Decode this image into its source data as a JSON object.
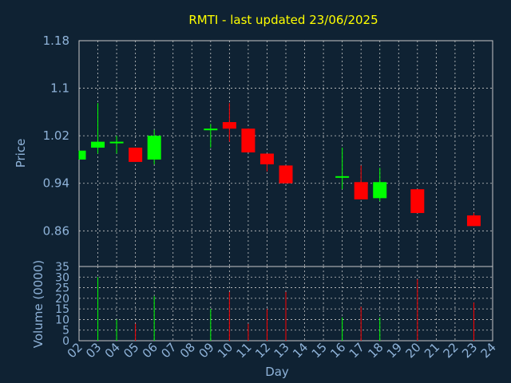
{
  "chart_data": {
    "type": "candlestick",
    "title": "RMTI - last updated 23/06/2025",
    "x_axis_label": "Day",
    "price_axis_label": "Price",
    "volume_axis_label": "Volume (0000)",
    "x_ticks": [
      "02",
      "03",
      "04",
      "05",
      "06",
      "07",
      "08",
      "09",
      "10",
      "11",
      "12",
      "13",
      "14",
      "15",
      "16",
      "17",
      "18",
      "19",
      "20",
      "21",
      "22",
      "23",
      "24"
    ],
    "price_ticks": [
      "1.18",
      "1.1",
      "1.02",
      "0.94",
      "0.86"
    ],
    "price_ylim": [
      0.8,
      1.18
    ],
    "volume_ticks": [
      "35",
      "30",
      "25",
      "20",
      "15",
      "10",
      "5",
      "0"
    ],
    "volume_ylim": [
      0,
      35
    ],
    "colors": {
      "up": "#00ff00",
      "down": "#ff0000",
      "background": "#0f2233",
      "grid": "#c8c8c8",
      "title": "#ffff00",
      "labels": "#8fb3d9"
    },
    "candles": [
      {
        "day": "02",
        "open": 0.98,
        "close": 0.995,
        "high": 0.995,
        "low": 0.98,
        "volume": 0
      },
      {
        "day": "03",
        "open": 1.0,
        "close": 1.01,
        "high": 1.075,
        "low": 0.99,
        "volume": 30
      },
      {
        "day": "04",
        "open": 1.008,
        "close": 1.01,
        "high": 1.02,
        "low": 0.99,
        "volume": 10
      },
      {
        "day": "05",
        "open": 1.0,
        "close": 0.976,
        "high": 1.0,
        "low": 0.976,
        "volume": 8
      },
      {
        "day": "06",
        "open": 0.98,
        "close": 1.02,
        "high": 1.03,
        "low": 0.972,
        "volume": 21
      },
      {
        "day": "09",
        "open": 1.03,
        "close": 1.032,
        "high": 1.04,
        "low": 1.0,
        "volume": 15
      },
      {
        "day": "10",
        "open": 1.043,
        "close": 1.032,
        "high": 1.075,
        "low": 1.01,
        "volume": 23
      },
      {
        "day": "11",
        "open": 1.032,
        "close": 0.992,
        "high": 1.032,
        "low": 0.992,
        "volume": 8
      },
      {
        "day": "12",
        "open": 0.99,
        "close": 0.972,
        "high": 0.99,
        "low": 0.96,
        "volume": 15
      },
      {
        "day": "13",
        "open": 0.97,
        "close": 0.94,
        "high": 0.97,
        "low": 0.94,
        "volume": 23
      },
      {
        "day": "16",
        "open": 0.95,
        "close": 0.952,
        "high": 1.0,
        "low": 0.93,
        "volume": 11
      },
      {
        "day": "17",
        "open": 0.942,
        "close": 0.913,
        "high": 0.97,
        "low": 0.913,
        "volume": 16
      },
      {
        "day": "18",
        "open": 0.915,
        "close": 0.942,
        "high": 0.966,
        "low": 0.91,
        "volume": 11
      },
      {
        "day": "20",
        "open": 0.93,
        "close": 0.89,
        "high": 0.93,
        "low": 0.89,
        "volume": 29
      },
      {
        "day": "23",
        "open": 0.886,
        "close": 0.868,
        "high": 0.89,
        "low": 0.868,
        "volume": 18
      }
    ]
  }
}
